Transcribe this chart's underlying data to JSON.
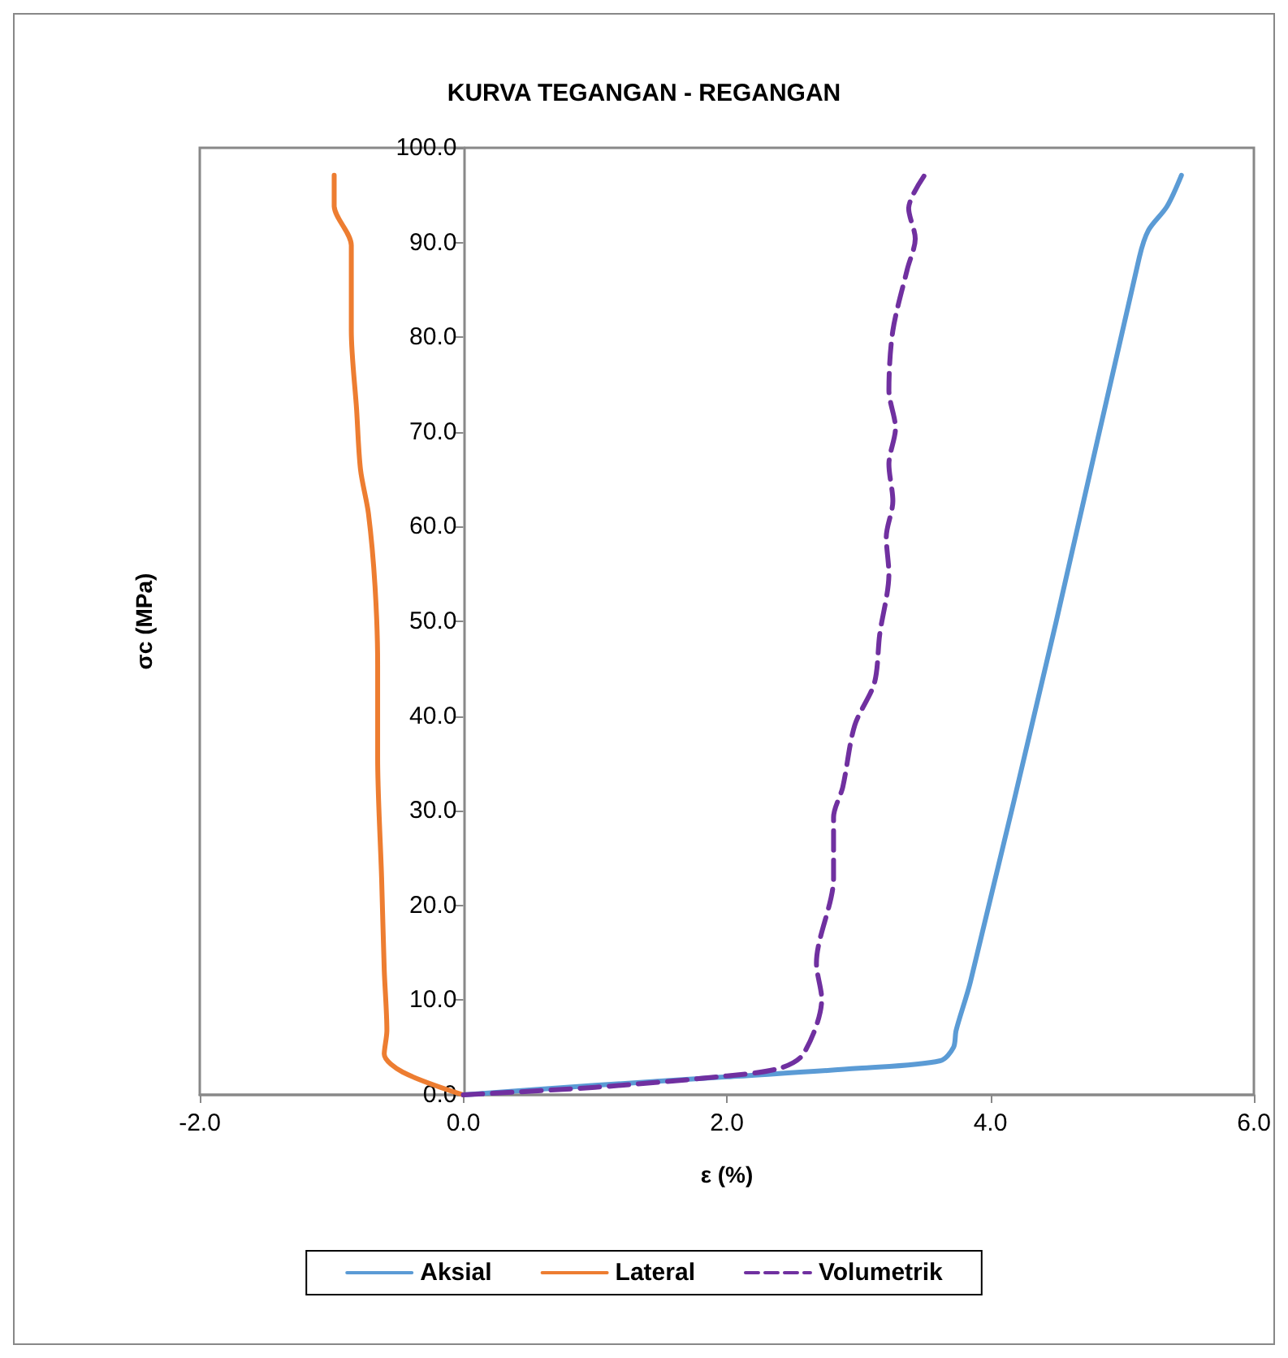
{
  "chart_data": {
    "type": "line",
    "title": "KURVA TEGANGAN - REGANGAN",
    "xlabel": "ε (%)",
    "ylabel": "σc (MPa)",
    "xlim": [
      -2,
      6
    ],
    "ylim": [
      0,
      100
    ],
    "xticks": [
      {
        "value": -2,
        "label": "-2.0"
      },
      {
        "value": 0,
        "label": "0.0"
      },
      {
        "value": 2,
        "label": "2.0"
      },
      {
        "value": 4,
        "label": "4.0"
      },
      {
        "value": 6,
        "label": "6.0"
      }
    ],
    "yticks": [
      {
        "value": 0,
        "label": "0.0"
      },
      {
        "value": 10,
        "label": "10.0"
      },
      {
        "value": 20,
        "label": "20.0"
      },
      {
        "value": 30,
        "label": "30.0"
      },
      {
        "value": 40,
        "label": "40.0"
      },
      {
        "value": 50,
        "label": "50.0"
      },
      {
        "value": 60,
        "label": "60.0"
      },
      {
        "value": 70,
        "label": "70.0"
      },
      {
        "value": 80,
        "label": "80.0"
      },
      {
        "value": 90,
        "label": "90.0"
      },
      {
        "value": 100,
        "label": "100.0"
      }
    ],
    "grid": false,
    "legend": "bottom",
    "marker": "none",
    "line_style": "solid",
    "series": [
      {
        "name": "Aksial",
        "color": "#5b9bd5",
        "x": [
          0,
          1,
          2,
          3,
          3.62,
          3.72,
          3.74,
          3.85,
          4.5,
          5.13,
          5.2,
          5.34,
          5.45
        ],
        "values": [
          0,
          1.0,
          1.9,
          2.8,
          3.6,
          5,
          6.8,
          12,
          50,
          88.4,
          91.3,
          93.8,
          97.1
        ]
      },
      {
        "name": "Lateral",
        "color": "#ed7d31",
        "x": [
          0,
          -0.46,
          -0.6,
          -0.58,
          -0.6,
          -0.62,
          -0.65,
          -0.65,
          -0.67,
          -0.72,
          -0.78,
          -0.81,
          -0.85,
          -0.85,
          -0.98,
          -0.98
        ],
        "values": [
          0,
          2.4,
          4.3,
          6.8,
          13.2,
          22.9,
          35.6,
          45.4,
          53.7,
          61.4,
          66,
          72.4,
          80.7,
          89.7,
          93.9,
          97.1
        ]
      },
      {
        "name": "Volumetrik",
        "color": "#7030a0",
        "line_style": "dashed",
        "x": [
          0,
          1,
          2,
          2.4,
          2.58,
          2.72,
          2.68,
          2.81,
          2.81,
          2.88,
          2.97,
          3.12,
          3.16,
          3.23,
          3.21,
          3.26,
          3.23,
          3.28,
          3.23,
          3.26,
          3.37,
          3.43,
          3.38,
          3.5
        ],
        "values": [
          0,
          0.8,
          2.0,
          2.8,
          4.3,
          10.1,
          13.9,
          22.9,
          29.3,
          32.5,
          39,
          43.5,
          48.6,
          55,
          58.9,
          62.7,
          66.6,
          70.4,
          74.4,
          80.7,
          87.2,
          90.4,
          93.6,
          97.1
        ]
      }
    ]
  }
}
